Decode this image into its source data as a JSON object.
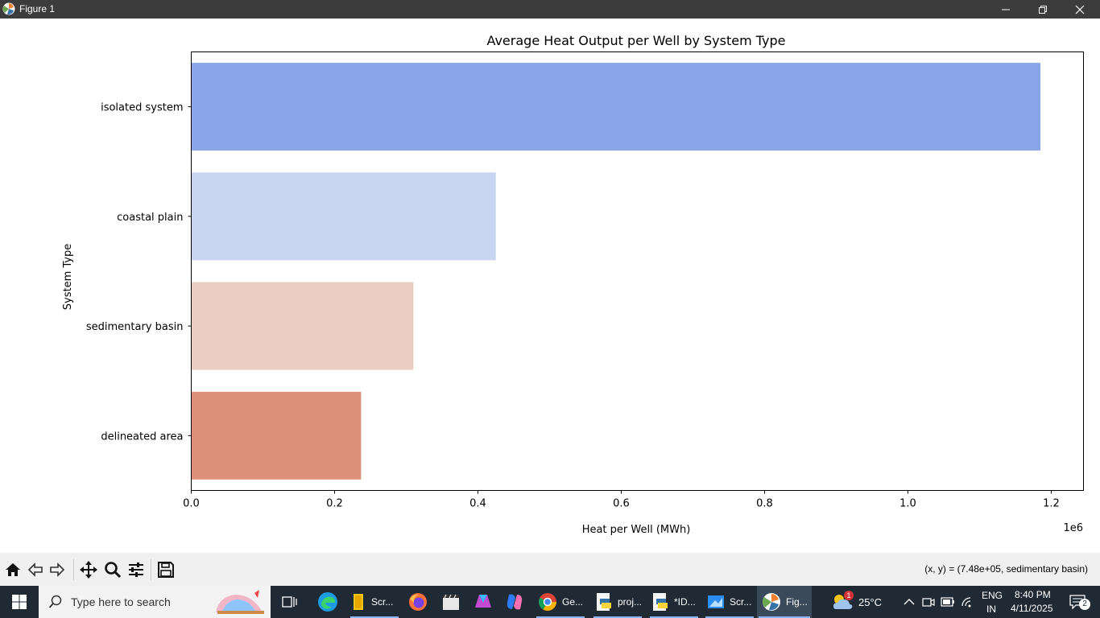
{
  "window": {
    "title": "Figure 1"
  },
  "chart_data": {
    "type": "bar",
    "orientation": "horizontal",
    "title": "Average Heat Output per Well by System Type",
    "xlabel": "Heat per Well (MWh)",
    "ylabel": "System Type",
    "x_offset_text": "1e6",
    "xlim": [
      0,
      1245000
    ],
    "x_ticks": [
      0,
      200000,
      400000,
      600000,
      800000,
      1000000,
      1200000
    ],
    "x_tick_labels": [
      "0.0",
      "0.2",
      "0.4",
      "0.6",
      "0.8",
      "1.0",
      "1.2"
    ],
    "categories": [
      "isolated system",
      "coastal plain",
      "sedimentary basin",
      "delineated area"
    ],
    "values": [
      1185000,
      425000,
      310000,
      237000
    ],
    "colors": [
      "#8aa6e8",
      "#c8d4f0",
      "#e8cdc0",
      "#dd8f78"
    ],
    "grid": false,
    "legend": "none"
  },
  "toolbar": {
    "buttons": [
      "home-icon",
      "back-arrow-icon",
      "forward-arrow-icon",
      "pan-icon",
      "zoom-icon",
      "subplots-icon",
      "save-icon"
    ],
    "coords_text": "(x, y) = (7.48e+05, sedimentary basin)"
  },
  "taskbar": {
    "search_placeholder": "Type here to search",
    "apps": [
      {
        "label": "Scr...",
        "icon": "file-explorer-icon",
        "color": "#f5c518"
      },
      {
        "label": "Ge...",
        "icon": "chrome-icon",
        "color": "#34a853"
      },
      {
        "label": "proj...",
        "icon": "python-file-icon",
        "color": "#3572a5"
      },
      {
        "label": "*ID...",
        "icon": "idle-icon",
        "color": "#3572a5"
      },
      {
        "label": "Scr...",
        "icon": "snipping-tool-icon",
        "color": "#2d8cf0"
      },
      {
        "label": "Fig...",
        "icon": "matplotlib-icon",
        "color": "#f08030"
      }
    ],
    "weather_temp": "25°C",
    "weather_badge": "1",
    "lang_top": "ENG",
    "lang_bottom": "IN",
    "time": "8:40 PM",
    "date": "4/11/2025",
    "notification_count": "2"
  }
}
